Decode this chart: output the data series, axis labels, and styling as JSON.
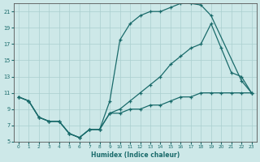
{
  "xlabel": "Humidex (Indice chaleur)",
  "bg_color": "#cde8e8",
  "grid_color": "#aacfcf",
  "line_color": "#1a6b6b",
  "spine_color": "#555555",
  "xlim": [
    -0.5,
    23.5
  ],
  "ylim": [
    5,
    22
  ],
  "xticks": [
    0,
    1,
    2,
    3,
    4,
    5,
    6,
    7,
    8,
    9,
    10,
    11,
    12,
    13,
    14,
    15,
    16,
    17,
    18,
    19,
    20,
    21,
    22,
    23
  ],
  "yticks": [
    5,
    7,
    9,
    11,
    13,
    15,
    17,
    19,
    21
  ],
  "line_upper_x": [
    0,
    1,
    2,
    3,
    4,
    5,
    6,
    7,
    8,
    9,
    10,
    11,
    12,
    13,
    14,
    15,
    16,
    17,
    18,
    19,
    22,
    23
  ],
  "line_upper_y": [
    10.5,
    10.0,
    8.0,
    7.5,
    7.5,
    6.0,
    5.5,
    6.5,
    6.5,
    10.0,
    17.5,
    19.5,
    20.5,
    21.0,
    21.0,
    21.5,
    22.0,
    22.0,
    21.8,
    20.5,
    12.5,
    11.0
  ],
  "line_mid_x": [
    0,
    1,
    2,
    3,
    4,
    5,
    6,
    7,
    8,
    9,
    10,
    11,
    12,
    13,
    14,
    15,
    16,
    17,
    18,
    19,
    20,
    21,
    22,
    23
  ],
  "line_mid_y": [
    10.5,
    10.0,
    8.0,
    7.5,
    7.5,
    6.0,
    5.5,
    6.5,
    6.5,
    8.5,
    9.0,
    10.0,
    11.0,
    12.0,
    13.0,
    14.5,
    15.5,
    16.5,
    17.0,
    19.5,
    16.5,
    13.5,
    13.0,
    11.0
  ],
  "line_low_x": [
    0,
    1,
    2,
    3,
    4,
    5,
    6,
    7,
    8,
    9,
    10,
    11,
    12,
    13,
    14,
    15,
    16,
    17,
    18,
    19,
    20,
    21,
    22,
    23
  ],
  "line_low_y": [
    10.5,
    10.0,
    8.0,
    7.5,
    7.5,
    6.0,
    5.5,
    6.5,
    6.5,
    8.5,
    8.5,
    9.0,
    9.0,
    9.5,
    9.5,
    10.0,
    10.5,
    10.5,
    11.0,
    11.0,
    11.0,
    11.0,
    11.0,
    11.0
  ]
}
